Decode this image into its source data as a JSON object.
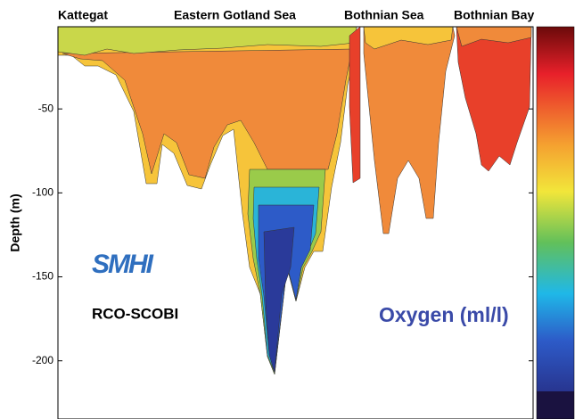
{
  "chart_data": {
    "type": "contour",
    "regions": [
      "Kattegat",
      "Eastern Gotland Sea",
      "Bothnian Sea",
      "Bothnian Bay"
    ],
    "ylabel": "Depth (m)",
    "ylim": [
      -232,
      0
    ],
    "yticks": [
      -50,
      -100,
      -150,
      -200
    ],
    "logo": "SMHI",
    "model": "RCO-SCOBI",
    "colorbar_label": "Oxygen (ml/l)"
  }
}
